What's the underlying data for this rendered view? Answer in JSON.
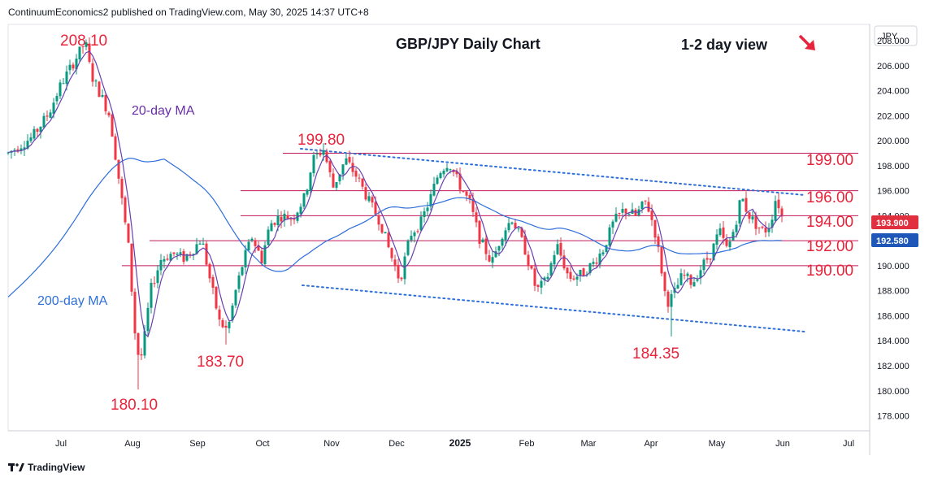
{
  "header": {
    "publisher": "ContinuumEconomics2 published on TradingView.com, May 30, 2025 14:37 UTC+8"
  },
  "footer": {
    "brand": "TradingView"
  },
  "chart_data": {
    "type": "candlestick",
    "title": "GBP/JPY Daily Chart",
    "subtitle": "1-2 day view",
    "currency": "JPY",
    "ylim": [
      176.8,
      209.3
    ],
    "y_ticks": [
      "178.000",
      "180.000",
      "182.000",
      "184.000",
      "186.000",
      "188.000",
      "190.000",
      "192.000",
      "194.000",
      "196.000",
      "198.000",
      "200.000",
      "202.000",
      "204.000",
      "206.000",
      "208.000"
    ],
    "x_ticks": [
      "Jul",
      "Aug",
      "Sep",
      "Oct",
      "Nov",
      "Dec",
      "2025",
      "Feb",
      "Mar",
      "Apr",
      "May",
      "Jun",
      "Jul"
    ],
    "last_price_badges": [
      "193.900",
      "192.580"
    ],
    "annotations": {
      "peaks_troughs": [
        "208.10",
        "199.80",
        "180.10",
        "183.70",
        "184.35"
      ],
      "levels": [
        "199.00",
        "196.00",
        "194.00",
        "192.00",
        "190.00"
      ],
      "ma20": "20-day MA",
      "ma200": "200-day MA"
    },
    "horizontal_levels": [
      199.0,
      196.0,
      194.0,
      192.0,
      190.0
    ],
    "colors": {
      "up": "#089981",
      "down": "#f23645",
      "ma20": "#6a3fb0",
      "ma200": "#2e6fdb",
      "levels": "#c2185b",
      "trend": "#2e6fdb",
      "annotation": "#e8243c",
      "badge_price": "#e03040",
      "badge_ma": "#1f57b8"
    }
  }
}
